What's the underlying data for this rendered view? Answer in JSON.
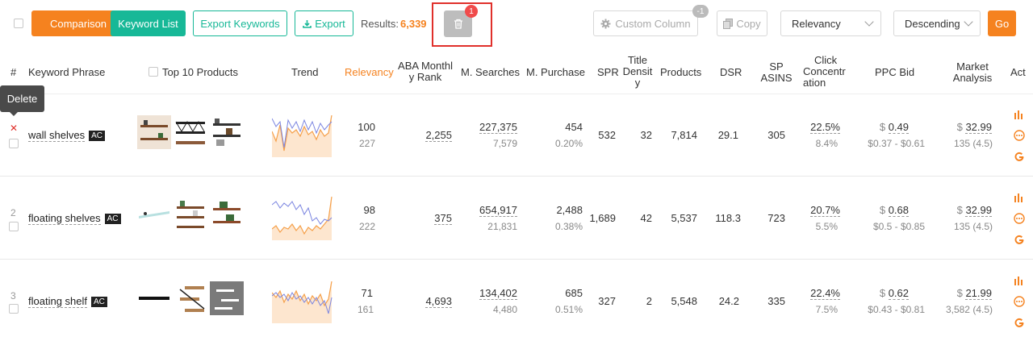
{
  "toolbar": {
    "comparison_label": "Comparison",
    "keyword_list_label": "Keyword List",
    "export_keywords_label": "Export Keywords",
    "export_label": "Export",
    "results_label": "Results:",
    "results_count": "6,339",
    "delete_badge": "1",
    "custom_column_label": "Custom Column",
    "custom_column_badge": "-1",
    "copy_label": "Copy",
    "sort_field": "Relevancy",
    "sort_order": "Descending",
    "go_label": "Go"
  },
  "tooltip": {
    "delete_label": "Delete"
  },
  "columns": {
    "index": "#",
    "keyword": "Keyword Phrase",
    "top10": "Top 10 Products",
    "trend": "Trend",
    "relevancy": "Relevancy",
    "aba_line1": "ABA Monthl",
    "aba_line2": "y Rank",
    "searches": "M. Searches",
    "purchase": "M. Purchase",
    "spr": "SPR",
    "title_line1": "Title",
    "title_line2": "Densit",
    "title_line3": "y",
    "products": "Products",
    "dsr": "DSR",
    "sp_line1": "SP",
    "sp_line2": "ASINS",
    "click_line1": "Click",
    "click_line2": "Concentr",
    "click_line3": "ation",
    "ppc": "PPC Bid",
    "market_line1": "Market",
    "market_line2": "Analysis",
    "action": "Act"
  },
  "rows": [
    {
      "index": "",
      "keyword": "wall shelves",
      "badge": "AC",
      "relevancy": "100",
      "relevancy_sub": "227",
      "aba_rank": "2,255",
      "searches": "227,375",
      "searches_sub": "7,579",
      "purchase": "454",
      "purchase_sub": "0.20%",
      "spr": "532",
      "title_density": "32",
      "products": "7,814",
      "dsr": "29.1",
      "sp_asins": "305",
      "click_conc": "22.5%",
      "click_conc_sub": "8.4%",
      "ppc_currency": "$",
      "ppc": "0.49",
      "ppc_range": "$0.37 - $0.61",
      "market_currency": "$",
      "market_price": "32.99",
      "market_sub": "135 (4.5)"
    },
    {
      "index": "2",
      "keyword": "floating shelves",
      "badge": "AC",
      "relevancy": "98",
      "relevancy_sub": "222",
      "aba_rank": "375",
      "searches": "654,917",
      "searches_sub": "21,831",
      "purchase": "2,488",
      "purchase_sub": "0.38%",
      "spr": "1,689",
      "title_density": "42",
      "products": "5,537",
      "dsr": "118.3",
      "sp_asins": "723",
      "click_conc": "20.7%",
      "click_conc_sub": "5.5%",
      "ppc_currency": "$",
      "ppc": "0.68",
      "ppc_range": "$0.5 - $0.85",
      "market_currency": "$",
      "market_price": "32.99",
      "market_sub": "135 (4.5)"
    },
    {
      "index": "3",
      "keyword": "floating shelf",
      "badge": "AC",
      "relevancy": "71",
      "relevancy_sub": "161",
      "aba_rank": "4,693",
      "searches": "134,402",
      "searches_sub": "4,480",
      "purchase": "685",
      "purchase_sub": "0.51%",
      "spr": "327",
      "title_density": "2",
      "products": "5,548",
      "dsr": "24.2",
      "sp_asins": "335",
      "click_conc": "22.4%",
      "click_conc_sub": "7.5%",
      "ppc_currency": "$",
      "ppc": "0.62",
      "ppc_range": "$0.43 - $0.81",
      "market_currency": "$",
      "market_price": "21.99",
      "market_sub": "3,582 (4.5)"
    }
  ],
  "icons": {
    "trash": "trash-icon",
    "gear": "gear-icon",
    "copy": "copy-icon",
    "download": "download-icon",
    "bar_chart": "bar-chart-icon",
    "more": "more-icon",
    "google": "google-icon"
  },
  "colors": {
    "accent": "#f5821f",
    "teal": "#17b897",
    "highlight": "#e0302b"
  }
}
